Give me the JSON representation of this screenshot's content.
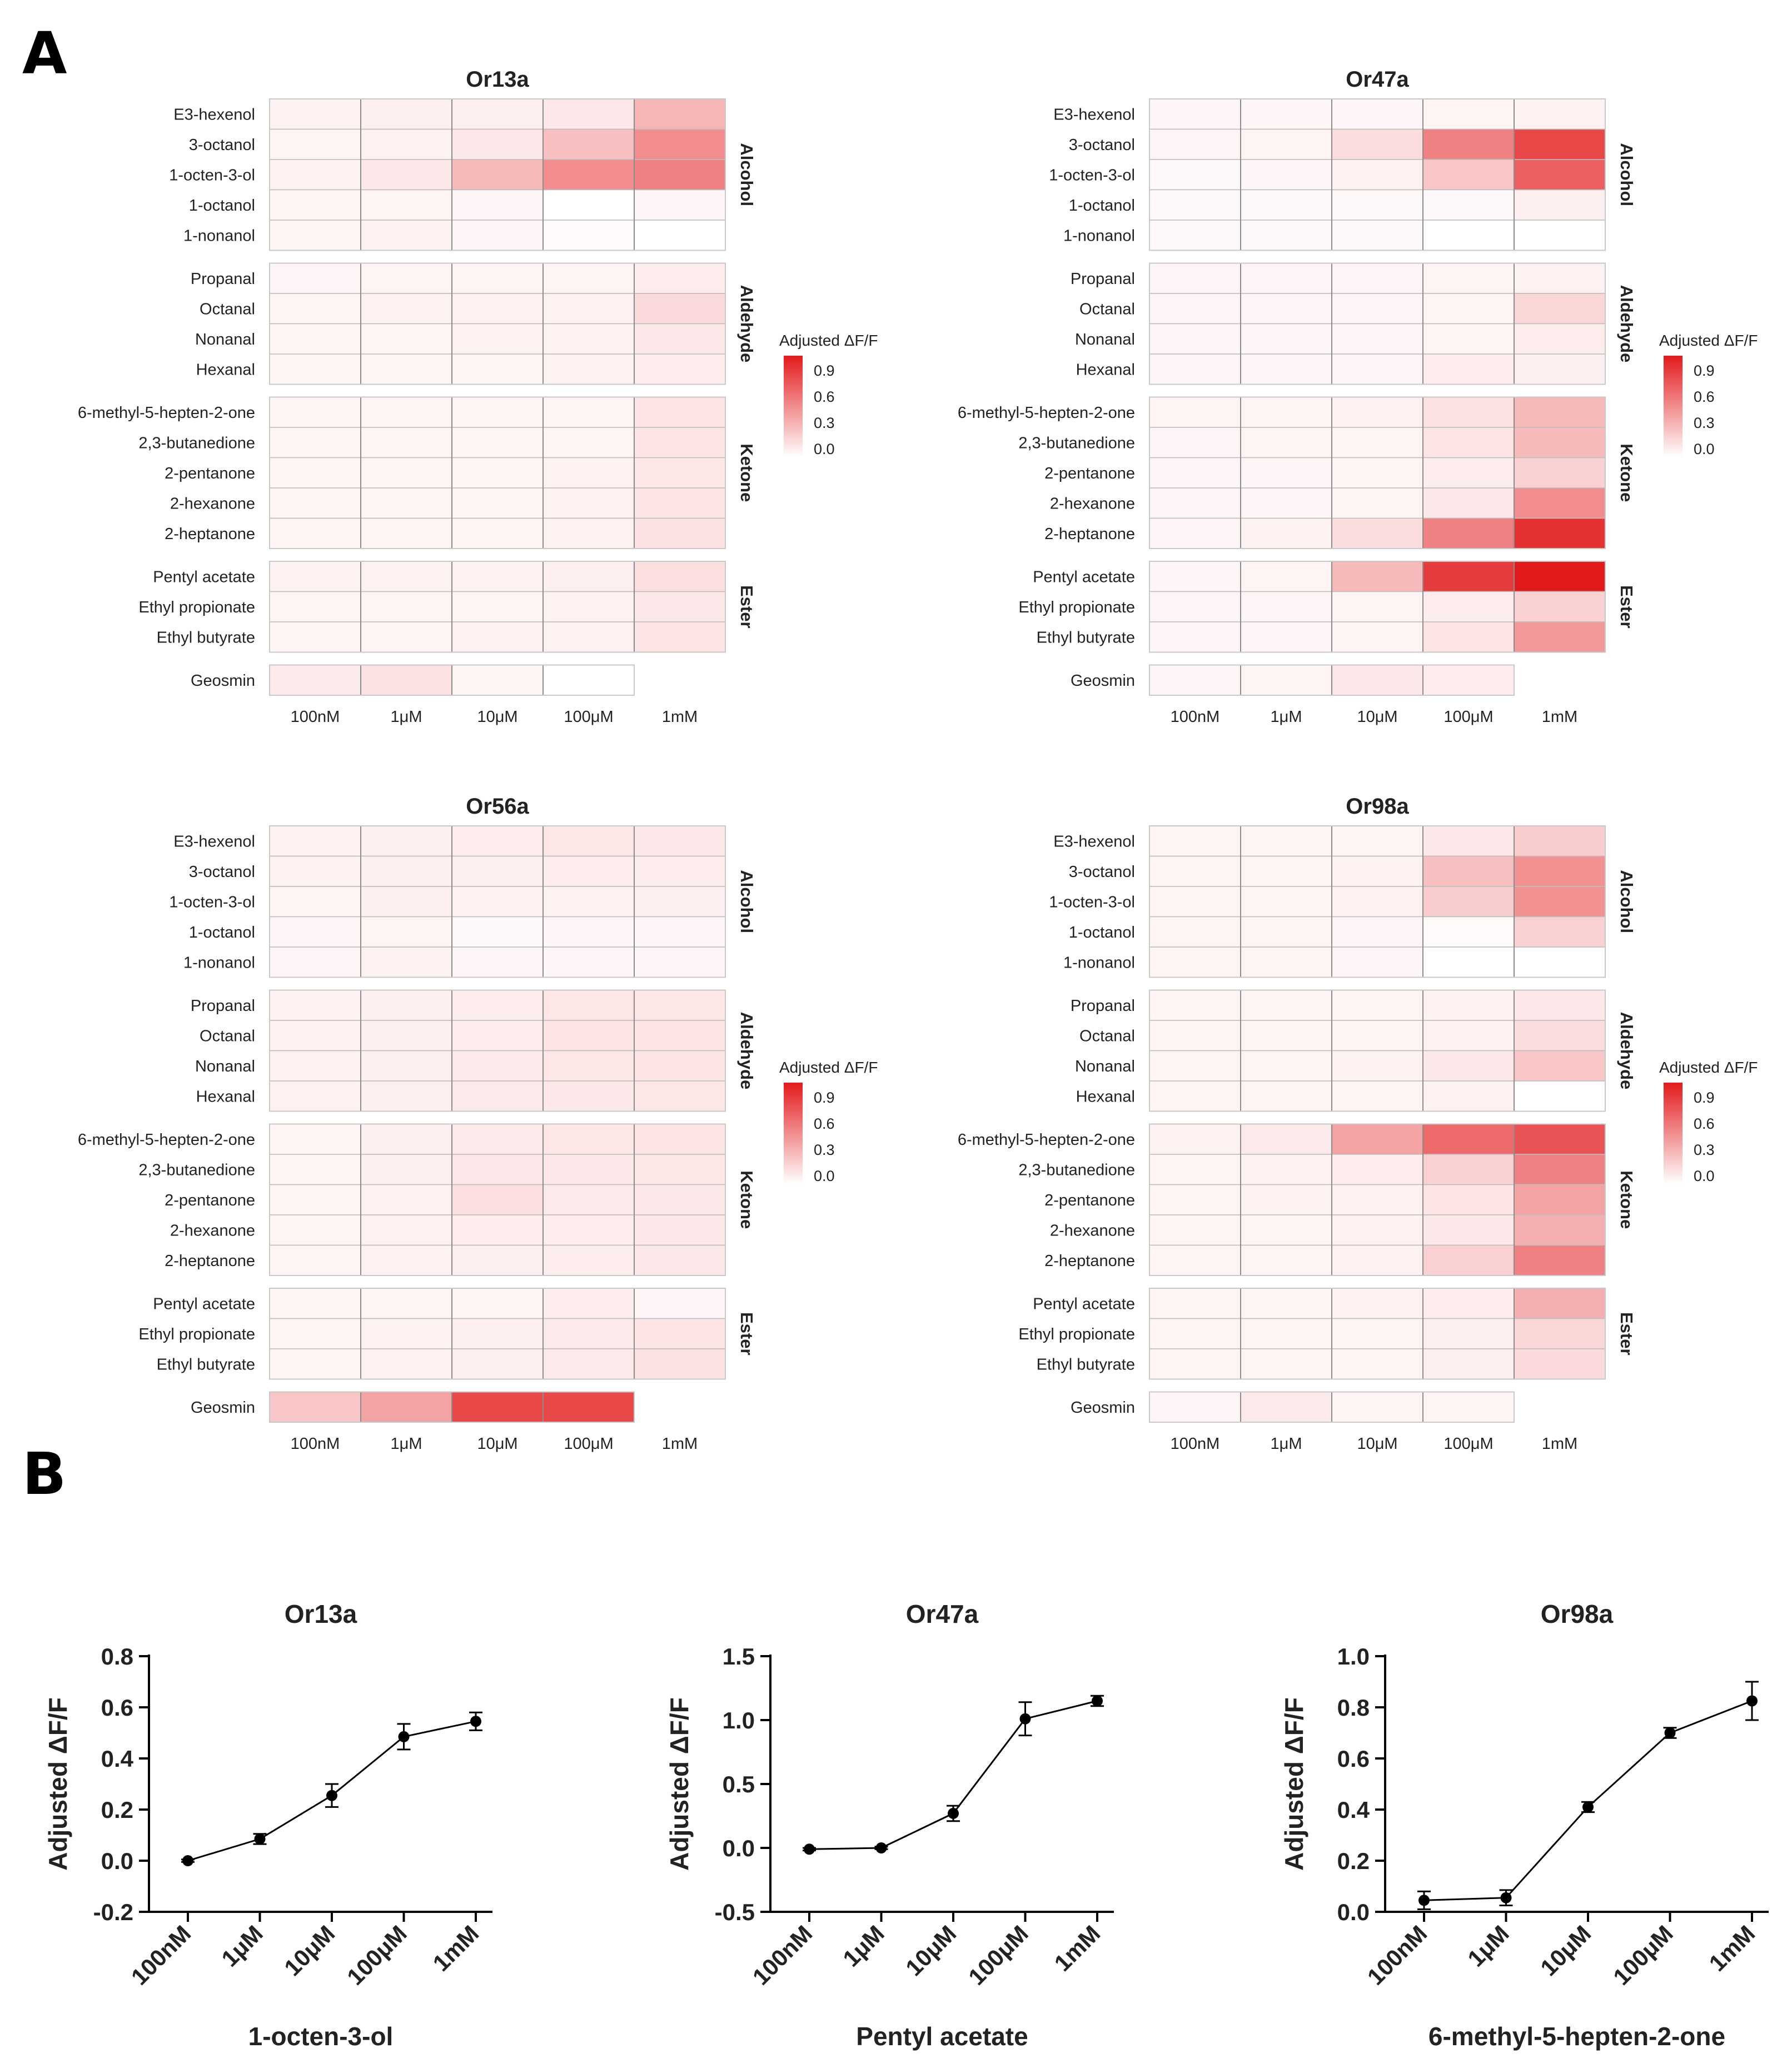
{
  "panels": {
    "a": "A",
    "b": "B"
  },
  "colors": {
    "max": "#e31a1c",
    "min": "#ffffff",
    "grid": "#bdbdbd",
    "axis": "#000000"
  },
  "chart_data": [
    {
      "type": "heatmap",
      "title": "Or13a",
      "legend_title": "Adjusted ΔF/F",
      "legend_ticks": [
        "0.9",
        "0.6",
        "0.3",
        "0.0"
      ],
      "columns": [
        "100nM",
        "1μM",
        "10μM",
        "100μM",
        "1mM"
      ],
      "groups": [
        {
          "name": "Alcohol",
          "rows": [
            "E3-hexenol",
            "3-octanol",
            "1-octen-3-ol",
            "1-octanol",
            "1-nonanol"
          ],
          "values": [
            [
              0.06,
              0.07,
              0.07,
              0.1,
              0.32
            ],
            [
              0.05,
              0.06,
              0.1,
              0.28,
              0.5
            ],
            [
              0.06,
              0.1,
              0.3,
              0.5,
              0.55
            ],
            [
              0.05,
              0.05,
              0.04,
              0.0,
              0.04
            ],
            [
              0.05,
              0.06,
              0.04,
              0.02,
              0.0
            ]
          ]
        },
        {
          "name": "Aldehyde",
          "rows": [
            "Propanal",
            "Octanal",
            "Nonanal",
            "Hexanal"
          ],
          "values": [
            [
              0.04,
              0.05,
              0.05,
              0.05,
              0.08
            ],
            [
              0.05,
              0.06,
              0.06,
              0.06,
              0.16
            ],
            [
              0.05,
              0.05,
              0.06,
              0.06,
              0.1
            ],
            [
              0.05,
              0.05,
              0.05,
              0.06,
              0.08
            ]
          ]
        },
        {
          "name": "Ketone",
          "rows": [
            "6-methyl-5-hepten-2-one",
            "2,3-butanedione",
            "2-pentanone",
            "2-hexanone",
            "2-heptanone"
          ],
          "values": [
            [
              0.05,
              0.05,
              0.05,
              0.05,
              0.12
            ],
            [
              0.05,
              0.05,
              0.05,
              0.05,
              0.12
            ],
            [
              0.05,
              0.05,
              0.05,
              0.06,
              0.11
            ],
            [
              0.05,
              0.05,
              0.05,
              0.06,
              0.12
            ],
            [
              0.05,
              0.05,
              0.05,
              0.06,
              0.13
            ]
          ]
        },
        {
          "name": "Ester",
          "rows": [
            "Pentyl acetate",
            "Ethyl propionate",
            "Ethyl butyrate"
          ],
          "values": [
            [
              0.06,
              0.06,
              0.06,
              0.07,
              0.14
            ],
            [
              0.05,
              0.05,
              0.05,
              0.06,
              0.1
            ],
            [
              0.05,
              0.05,
              0.06,
              0.06,
              0.12
            ]
          ]
        }
      ],
      "extra": {
        "row": "Geosmin",
        "values": [
          0.09,
          0.13,
          0.05,
          0.0
        ]
      }
    },
    {
      "type": "heatmap",
      "title": "Or47a",
      "legend_title": "Adjusted ΔF/F",
      "legend_ticks": [
        "0.9",
        "0.6",
        "0.3",
        "0.0"
      ],
      "columns": [
        "100nM",
        "1μM",
        "10μM",
        "100μM",
        "1mM"
      ],
      "groups": [
        {
          "name": "Alcohol",
          "rows": [
            "E3-hexenol",
            "3-octanol",
            "1-octen-3-ol",
            "1-octanol",
            "1-nonanol"
          ],
          "values": [
            [
              0.04,
              0.04,
              0.04,
              0.05,
              0.06
            ],
            [
              0.04,
              0.05,
              0.15,
              0.55,
              0.8
            ],
            [
              0.03,
              0.04,
              0.06,
              0.25,
              0.7
            ],
            [
              0.03,
              0.03,
              0.03,
              0.03,
              0.07
            ],
            [
              0.03,
              0.03,
              0.03,
              0.0,
              0.0
            ]
          ]
        },
        {
          "name": "Aldehyde",
          "rows": [
            "Propanal",
            "Octanal",
            "Nonanal",
            "Hexanal"
          ],
          "values": [
            [
              0.04,
              0.04,
              0.04,
              0.05,
              0.06
            ],
            [
              0.04,
              0.04,
              0.04,
              0.05,
              0.18
            ],
            [
              0.04,
              0.04,
              0.04,
              0.05,
              0.08
            ],
            [
              0.04,
              0.04,
              0.04,
              0.08,
              0.07
            ]
          ]
        },
        {
          "name": "Ketone",
          "rows": [
            "6-methyl-5-hepten-2-one",
            "2,3-butanedione",
            "2-pentanone",
            "2-hexanone",
            "2-heptanone"
          ],
          "values": [
            [
              0.05,
              0.05,
              0.06,
              0.13,
              0.3
            ],
            [
              0.04,
              0.05,
              0.05,
              0.12,
              0.3
            ],
            [
              0.04,
              0.04,
              0.05,
              0.08,
              0.2
            ],
            [
              0.04,
              0.04,
              0.05,
              0.1,
              0.5
            ],
            [
              0.04,
              0.06,
              0.15,
              0.55,
              0.9
            ]
          ]
        },
        {
          "name": "Ester",
          "rows": [
            "Pentyl acetate",
            "Ethyl propionate",
            "Ethyl butyrate"
          ],
          "values": [
            [
              0.04,
              0.05,
              0.3,
              0.85,
              1.0
            ],
            [
              0.04,
              0.04,
              0.05,
              0.08,
              0.2
            ],
            [
              0.04,
              0.04,
              0.05,
              0.12,
              0.45
            ]
          ]
        }
      ],
      "extra": {
        "row": "Geosmin",
        "values": [
          0.04,
          0.05,
          0.1,
          0.08
        ]
      }
    },
    {
      "type": "heatmap",
      "title": "Or56a",
      "legend_title": "Adjusted ΔF/F",
      "legend_ticks": [
        "0.9",
        "0.6",
        "0.3",
        "0.0"
      ],
      "columns": [
        "100nM",
        "1μM",
        "10μM",
        "100μM",
        "1mM"
      ],
      "groups": [
        {
          "name": "Alcohol",
          "rows": [
            "E3-hexenol",
            "3-octanol",
            "1-octen-3-ol",
            "1-octanol",
            "1-nonanol"
          ],
          "values": [
            [
              0.06,
              0.07,
              0.08,
              0.11,
              0.1
            ],
            [
              0.06,
              0.07,
              0.07,
              0.08,
              0.08
            ],
            [
              0.05,
              0.07,
              0.06,
              0.06,
              0.07
            ],
            [
              0.04,
              0.05,
              0.03,
              0.04,
              0.04
            ],
            [
              0.04,
              0.06,
              0.04,
              0.04,
              0.04
            ]
          ]
        },
        {
          "name": "Aldehyde",
          "rows": [
            "Propanal",
            "Octanal",
            "Nonanal",
            "Hexanal"
          ],
          "values": [
            [
              0.06,
              0.07,
              0.08,
              0.11,
              0.11
            ],
            [
              0.06,
              0.07,
              0.08,
              0.12,
              0.12
            ],
            [
              0.06,
              0.07,
              0.09,
              0.11,
              0.12
            ],
            [
              0.06,
              0.07,
              0.09,
              0.1,
              0.11
            ]
          ]
        },
        {
          "name": "Ketone",
          "rows": [
            "6-methyl-5-hepten-2-one",
            "2,3-butanedione",
            "2-pentanone",
            "2-hexanone",
            "2-heptanone"
          ],
          "values": [
            [
              0.05,
              0.07,
              0.09,
              0.11,
              0.12
            ],
            [
              0.05,
              0.07,
              0.1,
              0.1,
              0.11
            ],
            [
              0.05,
              0.06,
              0.14,
              0.09,
              0.1
            ],
            [
              0.05,
              0.06,
              0.08,
              0.08,
              0.1
            ],
            [
              0.05,
              0.06,
              0.07,
              0.08,
              0.1
            ]
          ]
        },
        {
          "name": "Ester",
          "rows": [
            "Pentyl acetate",
            "Ethyl propionate",
            "Ethyl butyrate"
          ],
          "values": [
            [
              0.05,
              0.05,
              0.05,
              0.08,
              0.04
            ],
            [
              0.05,
              0.06,
              0.07,
              0.09,
              0.12
            ],
            [
              0.05,
              0.06,
              0.07,
              0.09,
              0.13
            ]
          ]
        }
      ],
      "extra": {
        "row": "Geosmin",
        "values": [
          0.25,
          0.4,
          0.8,
          0.8
        ]
      }
    },
    {
      "type": "heatmap",
      "title": "Or98a",
      "legend_title": "Adjusted ΔF/F",
      "legend_ticks": [
        "0.9",
        "0.6",
        "0.3",
        "0.0"
      ],
      "columns": [
        "100nM",
        "1μM",
        "10μM",
        "100μM",
        "1mM"
      ],
      "groups": [
        {
          "name": "Alcohol",
          "rows": [
            "E3-hexenol",
            "3-octanol",
            "1-octen-3-ol",
            "1-octanol",
            "1-nonanol"
          ],
          "values": [
            [
              0.05,
              0.05,
              0.05,
              0.1,
              0.22
            ],
            [
              0.05,
              0.05,
              0.06,
              0.28,
              0.48
            ],
            [
              0.05,
              0.05,
              0.06,
              0.22,
              0.48
            ],
            [
              0.05,
              0.05,
              0.04,
              0.02,
              0.2
            ],
            [
              0.05,
              0.05,
              0.04,
              0.0,
              0.0
            ]
          ]
        },
        {
          "name": "Aldehyde",
          "rows": [
            "Propanal",
            "Octanal",
            "Nonanal",
            "Hexanal"
          ],
          "values": [
            [
              0.05,
              0.05,
              0.05,
              0.06,
              0.1
            ],
            [
              0.05,
              0.05,
              0.05,
              0.06,
              0.15
            ],
            [
              0.05,
              0.05,
              0.06,
              0.1,
              0.25
            ],
            [
              0.05,
              0.05,
              0.05,
              0.06,
              0.0
            ]
          ]
        },
        {
          "name": "Ketone",
          "rows": [
            "6-methyl-5-hepten-2-one",
            "2,3-butanedione",
            "2-pentanone",
            "2-hexanone",
            "2-heptanone"
          ],
          "values": [
            [
              0.06,
              0.09,
              0.4,
              0.65,
              0.75
            ],
            [
              0.05,
              0.06,
              0.08,
              0.2,
              0.55
            ],
            [
              0.05,
              0.06,
              0.06,
              0.12,
              0.4
            ],
            [
              0.05,
              0.05,
              0.06,
              0.1,
              0.35
            ],
            [
              0.05,
              0.05,
              0.06,
              0.2,
              0.55
            ]
          ]
        },
        {
          "name": "Ester",
          "rows": [
            "Pentyl acetate",
            "Ethyl propionate",
            "Ethyl butyrate"
          ],
          "values": [
            [
              0.05,
              0.05,
              0.06,
              0.08,
              0.35
            ],
            [
              0.05,
              0.05,
              0.05,
              0.07,
              0.18
            ],
            [
              0.05,
              0.05,
              0.05,
              0.07,
              0.16
            ]
          ]
        }
      ],
      "extra": {
        "row": "Geosmin",
        "values": [
          0.04,
          0.09,
          0.05,
          0.05
        ]
      }
    },
    {
      "type": "line",
      "title": "Or13a",
      "xlabel": "1-octen-3-ol",
      "ylabel": "Adjusted  ΔF/F",
      "categories": [
        "100nM",
        "1μM",
        "10μM",
        "100μM",
        "1mM"
      ],
      "values": [
        0.0,
        0.085,
        0.255,
        0.485,
        0.545
      ],
      "errors": [
        0.005,
        0.02,
        0.045,
        0.05,
        0.035
      ],
      "ylim": [
        -0.2,
        0.8
      ],
      "yticks": [
        "-0.2",
        "0.0",
        "0.2",
        "0.4",
        "0.6",
        "0.8"
      ]
    },
    {
      "type": "line",
      "title": "Or47a",
      "xlabel": "Pentyl acetate",
      "ylabel": "Adjusted  ΔF/F",
      "categories": [
        "100nM",
        "1μM",
        "10μM",
        "100μM",
        "1mM"
      ],
      "values": [
        -0.01,
        0.0,
        0.27,
        1.01,
        1.15
      ],
      "errors": [
        0.01,
        0.01,
        0.06,
        0.13,
        0.04
      ],
      "ylim": [
        -0.5,
        1.5
      ],
      "yticks": [
        "-0.5",
        "0.0",
        "0.5",
        "1.0",
        "1.5"
      ]
    },
    {
      "type": "line",
      "title": "Or98a",
      "xlabel": "6-methyl-5-hepten-2-one",
      "ylabel": "Adjusted  ΔF/F",
      "categories": [
        "100nM",
        "1μM",
        "10μM",
        "100μM",
        "1mM"
      ],
      "values": [
        0.045,
        0.055,
        0.41,
        0.7,
        0.825
      ],
      "errors": [
        0.035,
        0.03,
        0.02,
        0.02,
        0.075
      ],
      "ylim": [
        0.0,
        1.0
      ],
      "yticks": [
        "0.0",
        "0.2",
        "0.4",
        "0.6",
        "0.8",
        "1.0"
      ]
    }
  ]
}
